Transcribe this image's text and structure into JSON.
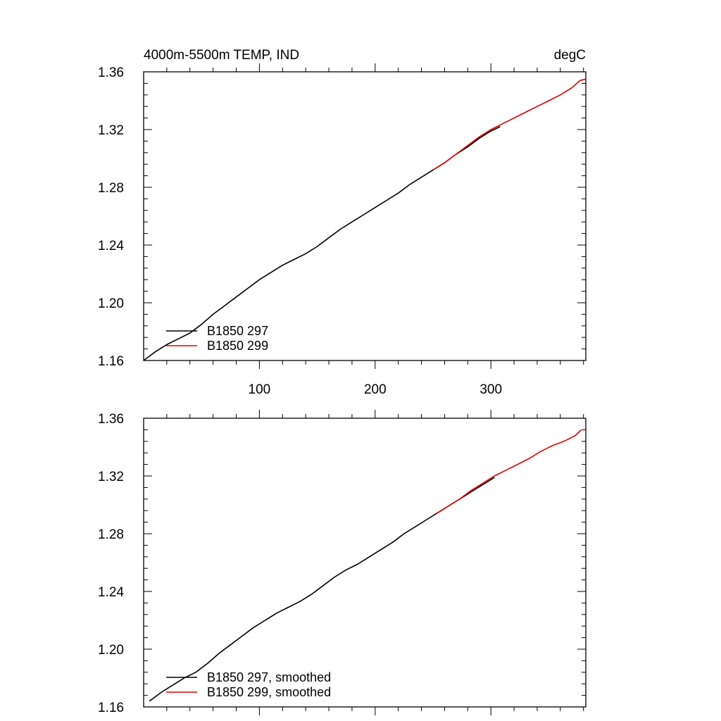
{
  "chart_data": [
    {
      "type": "line",
      "title": "4000m-5500m TEMP, IND",
      "units": "degC",
      "xlim": [
        0,
        382
      ],
      "ylim": [
        1.16,
        1.36
      ],
      "x_ticks": [
        100,
        200,
        300
      ],
      "x_tick_labels": [
        "100",
        "200",
        "300"
      ],
      "y_ticks": [
        1.16,
        1.2,
        1.24,
        1.28,
        1.32,
        1.36
      ],
      "y_tick_labels": [
        "1.16",
        "1.20",
        "1.24",
        "1.28",
        "1.32",
        "1.36"
      ],
      "grid": false,
      "legend_position": "bottom-left",
      "series": [
        {
          "name": "B1850 297",
          "color": "#000000",
          "points": [
            [
              0,
              1.16
            ],
            [
              10,
              1.166
            ],
            [
              20,
              1.171
            ],
            [
              30,
              1.175
            ],
            [
              40,
              1.179
            ],
            [
              50,
              1.185
            ],
            [
              60,
              1.192
            ],
            [
              70,
              1.198
            ],
            [
              80,
              1.204
            ],
            [
              90,
              1.21
            ],
            [
              100,
              1.216
            ],
            [
              110,
              1.221
            ],
            [
              120,
              1.226
            ],
            [
              130,
              1.23
            ],
            [
              140,
              1.234
            ],
            [
              150,
              1.239
            ],
            [
              160,
              1.245
            ],
            [
              170,
              1.251
            ],
            [
              180,
              1.256
            ],
            [
              190,
              1.261
            ],
            [
              200,
              1.266
            ],
            [
              210,
              1.271
            ],
            [
              220,
              1.276
            ],
            [
              230,
              1.282
            ],
            [
              240,
              1.287
            ],
            [
              250,
              1.292
            ],
            [
              260,
              1.297
            ],
            [
              270,
              1.303
            ],
            [
              280,
              1.308
            ],
            [
              290,
              1.314
            ],
            [
              300,
              1.319
            ],
            [
              308,
              1.322
            ]
          ]
        },
        {
          "name": "B1850 299",
          "color": "#e00000",
          "points": [
            [
              250,
              1.292
            ],
            [
              260,
              1.297
            ],
            [
              270,
              1.303
            ],
            [
              280,
              1.309
            ],
            [
              290,
              1.315
            ],
            [
              300,
              1.32
            ],
            [
              310,
              1.324
            ],
            [
              320,
              1.328
            ],
            [
              330,
              1.332
            ],
            [
              340,
              1.336
            ],
            [
              350,
              1.34
            ],
            [
              360,
              1.344
            ],
            [
              370,
              1.349
            ],
            [
              377,
              1.354
            ],
            [
              382,
              1.355
            ]
          ]
        }
      ]
    },
    {
      "type": "line",
      "xlim": [
        0,
        382
      ],
      "ylim": [
        1.16,
        1.36
      ],
      "y_ticks": [
        1.16,
        1.2,
        1.24,
        1.28,
        1.32,
        1.36
      ],
      "y_tick_labels": [
        "1.16",
        "1.20",
        "1.24",
        "1.28",
        "1.32",
        "1.36"
      ],
      "grid": false,
      "legend_position": "bottom-left",
      "series": [
        {
          "name": "B1850 297, smoothed",
          "color": "#000000",
          "points": [
            [
              5,
              1.164
            ],
            [
              15,
              1.17
            ],
            [
              25,
              1.175
            ],
            [
              35,
              1.18
            ],
            [
              45,
              1.184
            ],
            [
              55,
              1.19
            ],
            [
              65,
              1.197
            ],
            [
              75,
              1.203
            ],
            [
              85,
              1.209
            ],
            [
              95,
              1.215
            ],
            [
              105,
              1.22
            ],
            [
              115,
              1.225
            ],
            [
              125,
              1.229
            ],
            [
              135,
              1.233
            ],
            [
              145,
              1.238
            ],
            [
              155,
              1.244
            ],
            [
              165,
              1.25
            ],
            [
              175,
              1.255
            ],
            [
              185,
              1.259
            ],
            [
              195,
              1.264
            ],
            [
              205,
              1.269
            ],
            [
              215,
              1.274
            ],
            [
              225,
              1.28
            ],
            [
              235,
              1.285
            ],
            [
              245,
              1.29
            ],
            [
              255,
              1.295
            ],
            [
              265,
              1.3
            ],
            [
              275,
              1.305
            ],
            [
              285,
              1.31
            ],
            [
              295,
              1.315
            ],
            [
              303,
              1.319
            ]
          ]
        },
        {
          "name": "B1850 299, smoothed",
          "color": "#e00000",
          "points": [
            [
              253,
              1.294
            ],
            [
              263,
              1.299
            ],
            [
              273,
              1.304
            ],
            [
              283,
              1.31
            ],
            [
              293,
              1.315
            ],
            [
              303,
              1.32
            ],
            [
              313,
              1.324
            ],
            [
              323,
              1.328
            ],
            [
              333,
              1.332
            ],
            [
              343,
              1.337
            ],
            [
              353,
              1.341
            ],
            [
              363,
              1.344
            ],
            [
              373,
              1.348
            ],
            [
              378,
              1.352
            ]
          ]
        }
      ]
    }
  ]
}
